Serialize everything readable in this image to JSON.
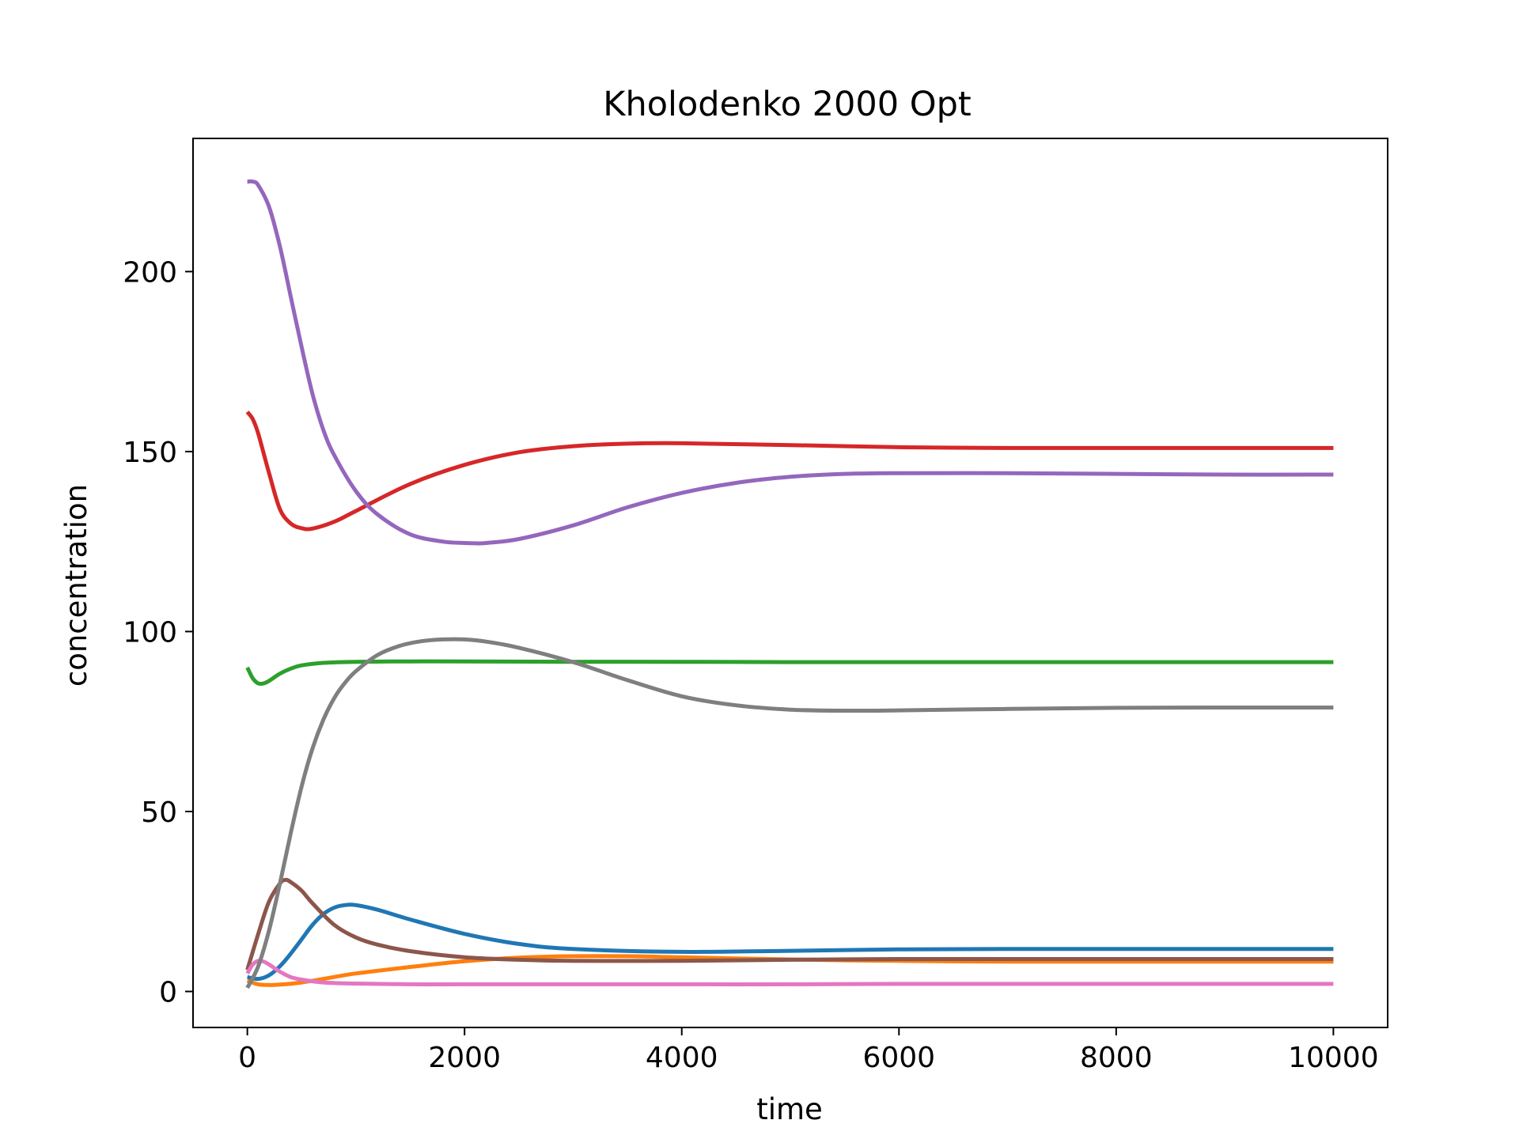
{
  "chart_data": {
    "type": "line",
    "title": "Kholodenko 2000 Opt",
    "xlabel": "time",
    "ylabel": "concentration",
    "xlim": [
      -500,
      10500
    ],
    "ylim": [
      -10,
      237
    ],
    "xticks": [
      0,
      2000,
      4000,
      6000,
      8000,
      10000
    ],
    "yticks": [
      0,
      50,
      100,
      150,
      200
    ],
    "grid": false,
    "legend": "none",
    "series": [
      {
        "color": "#1f77b4",
        "x": [
          0,
          100,
          200,
          300,
          400,
          500,
          600,
          700,
          800,
          900,
          1000,
          1200,
          1500,
          2000,
          2500,
          3000,
          4000,
          5000,
          6000,
          7000,
          8000,
          9000,
          10000
        ],
        "values": [
          4,
          3.5,
          4.5,
          7,
          10.5,
          14.5,
          18.5,
          21.5,
          23.3,
          24,
          24,
          22.7,
          20,
          16,
          13.2,
          11.8,
          11,
          11.3,
          11.7,
          11.8,
          11.8,
          11.8,
          11.8
        ]
      },
      {
        "color": "#ff7f0e",
        "x": [
          0,
          100,
          200,
          300,
          500,
          700,
          1000,
          1500,
          2000,
          2500,
          3000,
          3500,
          4000,
          5000,
          6000,
          7000,
          8000,
          9000,
          10000
        ],
        "values": [
          3,
          2,
          1.8,
          1.9,
          2.5,
          3.5,
          5,
          6.8,
          8.4,
          9.4,
          9.8,
          9.8,
          9.5,
          8.9,
          8.5,
          8.3,
          8.3,
          8.3,
          8.3
        ]
      },
      {
        "color": "#2ca02c",
        "x": [
          0,
          50,
          100,
          150,
          200,
          300,
          400,
          500,
          700,
          1000,
          1500,
          2000,
          3000,
          4000,
          5000,
          6000,
          7000,
          8000,
          9000,
          10000
        ],
        "values": [
          90,
          87,
          85.6,
          85.6,
          86.3,
          88.3,
          89.7,
          90.6,
          91.3,
          91.6,
          91.7,
          91.7,
          91.6,
          91.6,
          91.5,
          91.5,
          91.5,
          91.5,
          91.5,
          91.5
        ]
      },
      {
        "color": "#d62728",
        "x": [
          0,
          50,
          100,
          200,
          300,
          400,
          500,
          600,
          800,
          1000,
          1500,
          2000,
          2500,
          3000,
          3500,
          4000,
          5000,
          6000,
          7000,
          8000,
          9000,
          10000
        ],
        "values": [
          161,
          159,
          155,
          144,
          134,
          130,
          128.7,
          128.6,
          130.5,
          133.5,
          141,
          146.3,
          149.8,
          151.5,
          152.2,
          152.3,
          151.8,
          151.2,
          151,
          151,
          151,
          151
        ]
      },
      {
        "color": "#9467bd",
        "x": [
          0,
          50,
          100,
          200,
          300,
          400,
          500,
          600,
          700,
          800,
          1000,
          1200,
          1500,
          1800,
          2000,
          2100,
          2200,
          2500,
          3000,
          3500,
          4000,
          4500,
          5000,
          5500,
          6000,
          7000,
          8000,
          9000,
          10000
        ],
        "values": [
          225,
          225,
          224,
          218,
          207,
          193,
          179,
          166,
          156,
          149,
          139,
          132.5,
          127,
          125,
          124.6,
          124.5,
          124.6,
          125.7,
          129.5,
          134.5,
          138.5,
          141.3,
          143,
          143.8,
          144,
          144,
          143.8,
          143.6,
          143.6
        ]
      },
      {
        "color": "#8c564b",
        "x": [
          0,
          100,
          200,
          300,
          350,
          400,
          500,
          600,
          800,
          1000,
          1200,
          1500,
          2000,
          2500,
          3000,
          4000,
          5000,
          6000,
          7000,
          8000,
          9000,
          10000
        ],
        "values": [
          6,
          16,
          25,
          30,
          31,
          30.4,
          28,
          24.5,
          18.5,
          15,
          13,
          11.2,
          9.5,
          8.8,
          8.5,
          8.5,
          8.8,
          9,
          9,
          9,
          9,
          9
        ]
      },
      {
        "color": "#e377c2",
        "x": [
          0,
          50,
          100,
          150,
          200,
          300,
          400,
          500,
          700,
          1000,
          1500,
          2000,
          3000,
          4000,
          5000,
          6000,
          7000,
          8000,
          9000,
          10000
        ],
        "values": [
          5,
          7.5,
          8.5,
          8.3,
          7.5,
          5.5,
          4,
          3.3,
          2.5,
          2.2,
          2,
          2,
          2,
          2,
          2,
          2.1,
          2.1,
          2.1,
          2.1,
          2.1
        ]
      },
      {
        "color": "#7f7f7f",
        "x": [
          0,
          100,
          200,
          300,
          400,
          500,
          600,
          700,
          800,
          900,
          1000,
          1200,
          1400,
          1600,
          1800,
          2000,
          2200,
          2500,
          3000,
          3500,
          4000,
          4500,
          5000,
          5500,
          6000,
          7000,
          8000,
          9000,
          10000
        ],
        "values": [
          1,
          7,
          17,
          30,
          44,
          57,
          67.5,
          75.5,
          81.5,
          85.8,
          89,
          93.5,
          96,
          97.3,
          97.8,
          97.8,
          97.2,
          95.5,
          91.5,
          86.5,
          82,
          79.5,
          78.3,
          78,
          78.1,
          78.5,
          78.8,
          78.9,
          78.9
        ]
      }
    ]
  }
}
